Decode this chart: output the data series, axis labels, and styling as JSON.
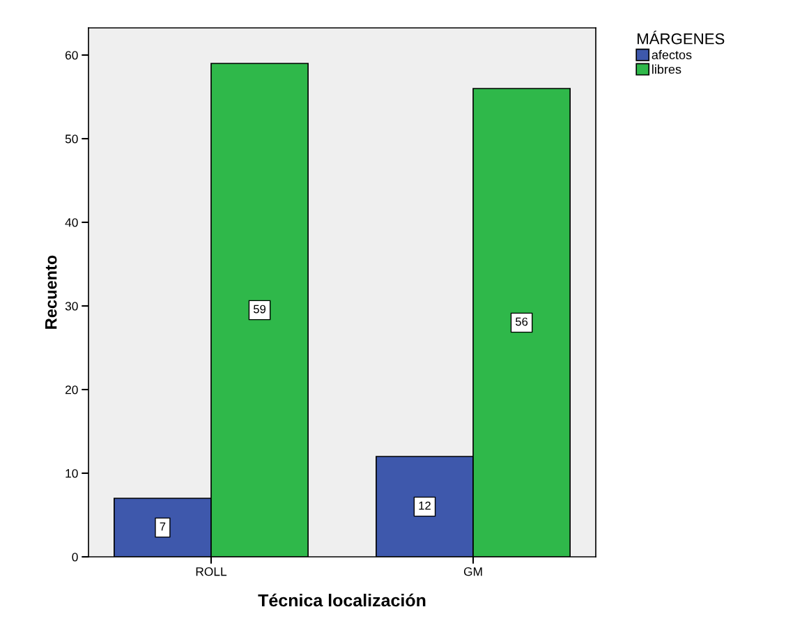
{
  "chart_data": {
    "type": "bar",
    "xlabel": "Técnica localización",
    "ylabel": "Recuento",
    "legend_title": "MÁRGENES",
    "categories": [
      "ROLL",
      "GM"
    ],
    "series": [
      {
        "name": "afectos",
        "color": "#3e58ac",
        "values": [
          7,
          12
        ]
      },
      {
        "name": "libres",
        "color": "#2fb84a",
        "values": [
          59,
          56
        ]
      }
    ],
    "ylim": [
      0,
      63.25
    ],
    "yticks": [
      0,
      10,
      20,
      30,
      40,
      50,
      60
    ],
    "data_labels": true,
    "legend": "top right"
  }
}
